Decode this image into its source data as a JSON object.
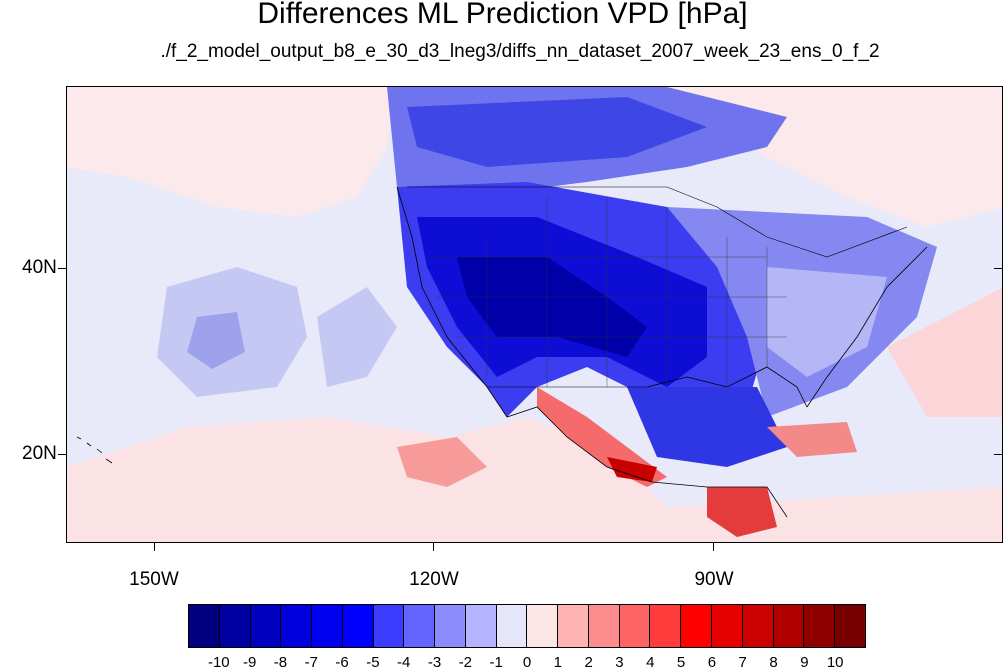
{
  "title": "Differences ML Prediction VPD [hPa]",
  "subtitle": "./f_2_model_output_b8_e_30_d3_lneg3/diffs_nn_dataset_2007_week_23_ens_0_f_2",
  "map": {
    "lat_labels": [
      "40N",
      "20N"
    ],
    "lon_labels": [
      "150W",
      "120W",
      "90W"
    ],
    "background_color": "#e8eafa",
    "land_outline_color": "#000000"
  },
  "colorbar": {
    "labels": [
      "-10",
      "-9",
      "-8",
      "-7",
      "-6",
      "-5",
      "-4",
      "-3",
      "-2",
      "-1",
      "0",
      "1",
      "2",
      "3",
      "4",
      "5",
      "6",
      "7",
      "8",
      "9",
      "10"
    ],
    "colors": [
      "#000080",
      "#0000a0",
      "#0000c0",
      "#0000dd",
      "#0000f0",
      "#0000ff",
      "#3c3cff",
      "#6464ff",
      "#8c8cff",
      "#b4b4ff",
      "#e6e6fa",
      "#fde6e6",
      "#ffb4b4",
      "#ff8c8c",
      "#ff6464",
      "#ff3c3c",
      "#ff0000",
      "#e60000",
      "#cc0000",
      "#b00000",
      "#900000",
      "#780000"
    ]
  }
}
